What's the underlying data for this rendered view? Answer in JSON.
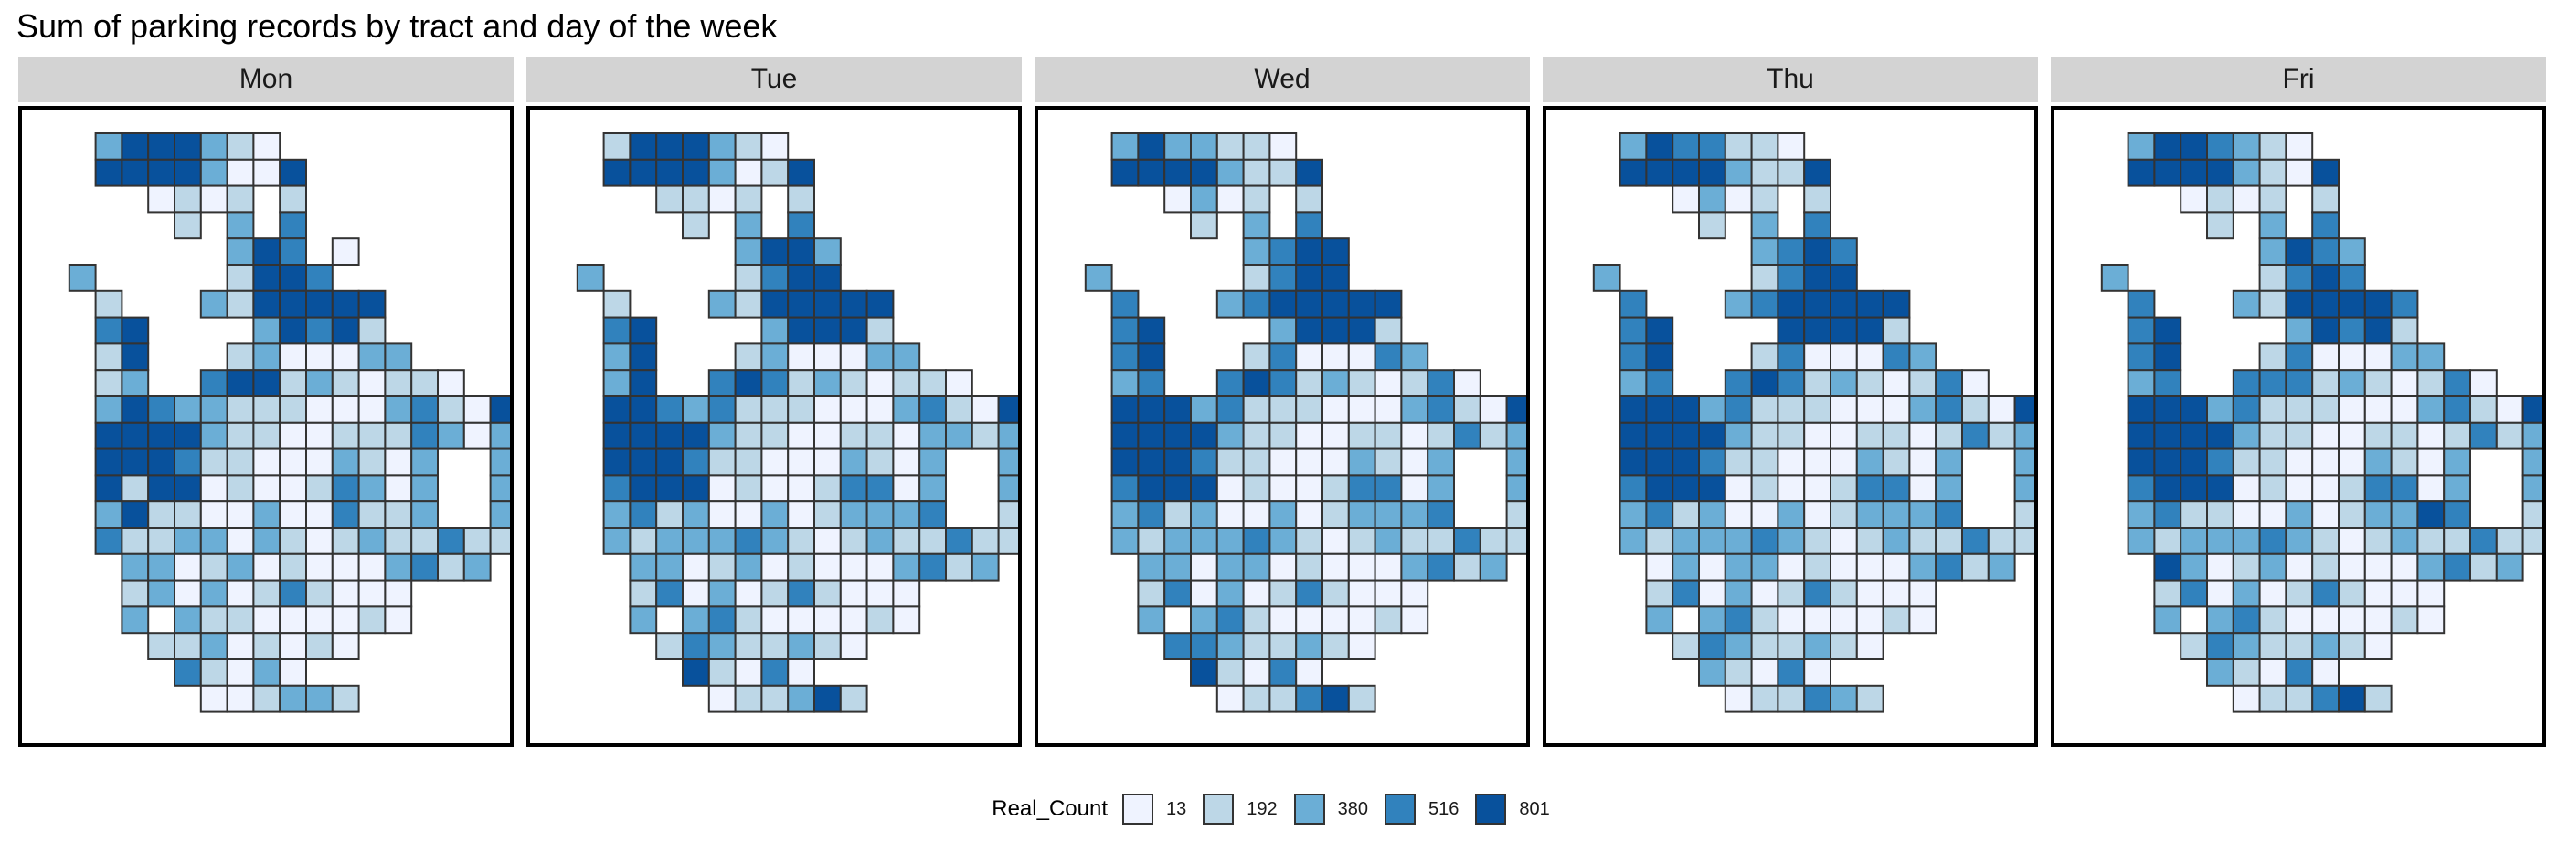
{
  "title": "Sum of parking records by tract and day of the week",
  "legend": {
    "title": "Real_Count",
    "items": [
      {
        "label": "13",
        "color": "#eff3ff"
      },
      {
        "label": "192",
        "color": "#bdd7e7"
      },
      {
        "label": "380",
        "color": "#6baed6"
      },
      {
        "label": "516",
        "color": "#3182bd"
      },
      {
        "label": "801",
        "color": "#08519c"
      }
    ]
  },
  "chart_data": {
    "type": "heatmap",
    "title": "Sum of parking records by tract and day of the week",
    "facets": [
      "Mon",
      "Tue",
      "Wed",
      "Thu",
      "Fri"
    ],
    "legend_position": "bottom",
    "grid": false,
    "fill_variable": "Real_Count",
    "class_breaks": [
      13,
      192,
      380,
      516,
      801
    ],
    "cell_encoding": "row strings listed top to bottom; characters are grid columns 0-17 left to right; '.' = no tract, 1-5 = legend class (1 = 13, 2 = 192, 3 = 380, 4 = 516, 5 = 801)",
    "panels": [
      {
        "day": "Mon",
        "rows": [
          "..3555321.........",
          "..55553115........",
          "....1212.2........",
          ".....2.3.4........",
          ".......354.1......",
          ".3.....2554.......",
          "..2...3255555.....",
          "..45....35452.....",
          "..25...2311133....",
          "..23..4552321221..",
          "..3543322211134215",
          "..5555322112224313",
          "..5554221113213..3",
          "..5255121124313..3",
          "..3522113114223..3",
          "..4223313212322422",
          "...33123121113423.",
          "...23131242111....",
          "...3.322111121....",
          "....22312121......",
          ".....42131........",
          "......112332......"
        ]
      },
      {
        "day": "Tue",
        "rows": [
          "..2555321.........",
          "..55553125........",
          "....2212.2........",
          ".....2.3.4........",
          ".......3553.......",
          ".3.....2455.......",
          "..2...3255555.....",
          "..45....35552.....",
          "..35...2311133....",
          "..35..4542321221..",
          "..5543422211134215",
          "..5555322112213323",
          "..5554221113213..3",
          "..4555121124413..3",
          "..3423113123334..2",
          "..3233343212322422",
          "...33123121113423.",
          "...24131242111....",
          "...3.342111121....",
          "....24322321......",
          ".....52141........",
          "......122352......"
        ]
      },
      {
        "day": "Wed",
        "rows": [
          "..3533221.........",
          "..55553225........",
          "....1312.2........",
          ".....2.3.4........",
          ".......3455.......",
          ".3.....2455.......",
          "..4...3455555.....",
          "..45....35552.....",
          "..45...2411143....",
          "..34..4542321241..",
          "..5553422211134215",
          "..5555322112212423",
          "..5554221113213..3",
          "..4555121124413..3",
          "..3423113123334..2",
          "..3233343212322422",
          "...33133121113423.",
          "...24131242111....",
          "...3.342111121....",
          "....44322321......",
          ".....52141........",
          "......122452......"
        ]
      },
      {
        "day": "Thu",
        "rows": [
          "..3544221.........",
          "..55553225........",
          "....1312.2........",
          ".....2.3.4........",
          ".......3454.......",
          ".3.....2455.......",
          "..4...3455555.....",
          "..45....55552.....",
          "..45...2411143....",
          "..34..4542321241..",
          "..5553422211134215",
          "..5555322112212423",
          "..5554221113213..3",
          "..4555121124413..3",
          "..3423113123334..2",
          "..3233343212322422",
          "...13133121113423.",
          "...24131242111....",
          "...3.342111121....",
          "....24322321......",
          ".....32141........",
          "......122432......"
        ]
      },
      {
        "day": "Fri",
        "rows": [
          "..3554321.........",
          "..55553215........",
          "....1212.2........",
          ".....2.3.4........",
          ".......3543.......",
          ".3.....2454.......",
          "..4...3255554.....",
          "..45....35452.....",
          "..45...2411133....",
          "..34..4442321241..",
          "..5553422211134215",
          "..5555322112212423",
          "..5554221113213..3",
          "..4555121124413..3",
          "..3422113123354..2",
          "..3233343212322422",
          "...53123121113423.",
          "...24131242111....",
          "...3.342111121....",
          "....24322321......",
          ".....32141........",
          "......122452......"
        ]
      }
    ]
  }
}
